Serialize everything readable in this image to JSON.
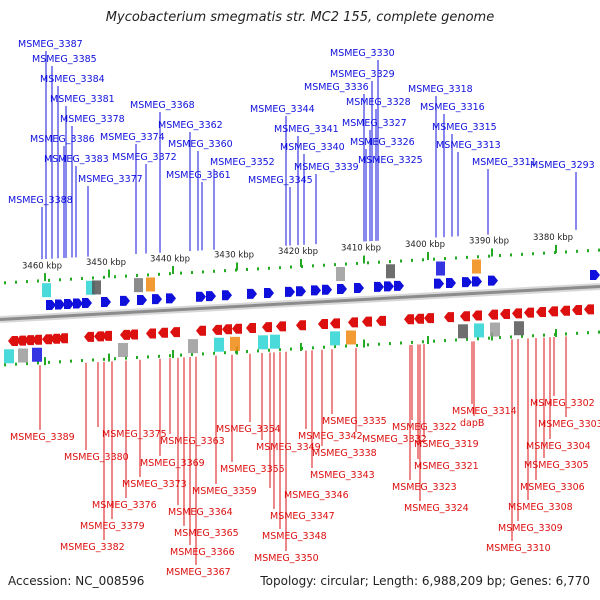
{
  "title": "Mycobacterium smegmatis str. MC2 155, complete genome",
  "footer": {
    "accession": "Accession: NC_008596",
    "summary": "Topology: circular; Length: 6,988,209 bp; Genes: 6,770"
  },
  "colors": {
    "forward": "#1010dd",
    "reverse": "#dd1010",
    "backbone": "#b0b0b0",
    "tick": "#22aa22",
    "scale_text": "#222222",
    "cyan": "#2ad4d4",
    "orange": "#f08a10",
    "gray": "#9a9a9a"
  },
  "scale_labels": [
    "3460 kbp",
    "3450 kbp",
    "3440 kbp",
    "3430 kbp",
    "3420 kbp",
    "3410 kbp",
    "3400 kbp",
    "3390 kbp",
    "3380 kbp"
  ],
  "forward_genes": [
    "MSMEG_3387",
    "MSMEG_3385",
    "MSMEG_3384",
    "MSMEG_3381",
    "MSMEG_3378",
    "MSMEG_3386",
    "MSMEG_3383",
    "MSMEG_3377",
    "MSMEG_3388",
    "MSMEG_3374",
    "MSMEG_3372",
    "MSMEG_3368",
    "MSMEG_3362",
    "MSMEG_3360",
    "MSMEG_3361",
    "MSMEG_3352",
    "MSMEG_3344",
    "MSMEG_3341",
    "MSMEG_3340",
    "MSMEG_3339",
    "MSMEG_3345",
    "MSMEG_3330",
    "MSMEG_3329",
    "MSMEG_3336",
    "MSMEG_3328",
    "MSMEG_3327",
    "MSMEG_3326",
    "MSMEG_3325",
    "MSMEG_3318",
    "MSMEG_3316",
    "MSMEG_3315",
    "MSMEG_3313",
    "MSMEG_3311",
    "MSMEG_3293"
  ],
  "reverse_genes": [
    "MSMEG_3389",
    "MSMEG_3380",
    "MSMEG_3375",
    "MSMEG_3382",
    "MSMEG_3379",
    "MSMEG_3376",
    "MSMEG_3373",
    "MSMEG_3369",
    "MSMEG_3363",
    "MSMEG_3364",
    "MSMEG_3365",
    "MSMEG_3366",
    "MSMEG_3367",
    "MSMEG_3359",
    "MSMEG_3355",
    "MSMEG_3354",
    "MSMEG_3349",
    "MSMEG_3346",
    "MSMEG_3347",
    "MSMEG_3348",
    "MSMEG_3350",
    "MSMEG_3342",
    "MSMEG_3343",
    "MSMEG_3338",
    "MSMEG_3335",
    "MSMEG_3332",
    "MSMEG_3322",
    "MSMEG_3319",
    "MSMEG_3321",
    "MSMEG_3323",
    "MSMEG_3324",
    "MSMEG_3314",
    "dapB",
    "MSMEG_3302",
    "MSMEG_3303",
    "MSMEG_3304",
    "MSMEG_3305",
    "MSMEG_3306",
    "MSMEG_3308",
    "MSMEG_3309",
    "MSMEG_3310"
  ]
}
